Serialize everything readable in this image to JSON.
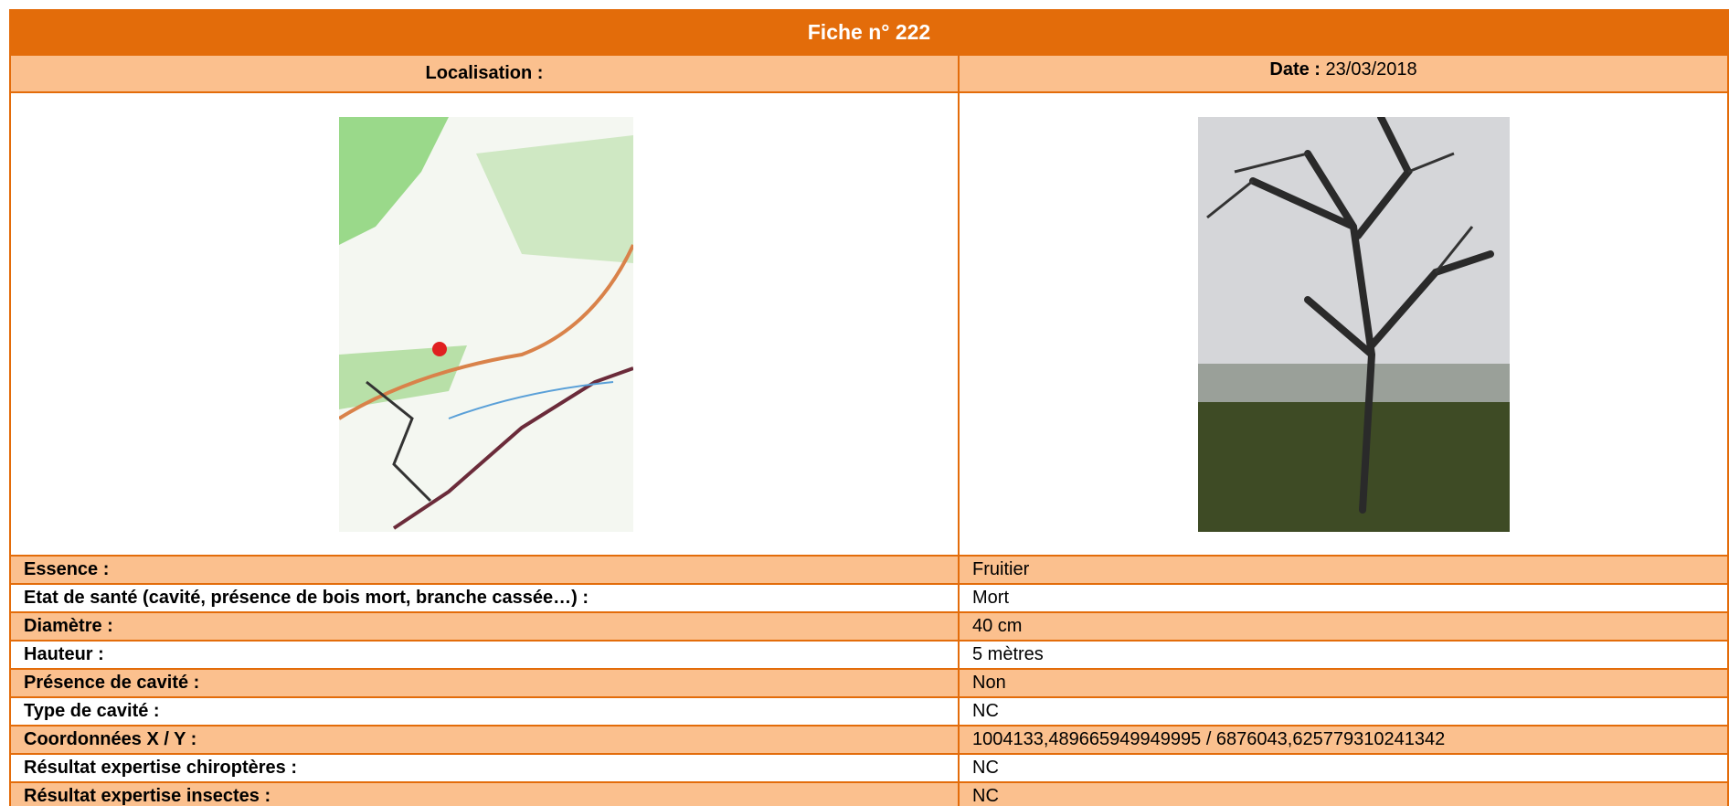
{
  "header": {
    "title": "Fiche n° 222"
  },
  "subheader": {
    "localisation_label": "Localisation :",
    "date_label": "Date :",
    "date_value": "23/03/2018"
  },
  "table": {
    "rows": [
      [
        "Essence :",
        "Fruitier"
      ],
      [
        "Etat de santé (cavité, présence de bois mort, branche cassée…) :",
        "Mort"
      ],
      [
        "Diamètre :",
        "40 cm"
      ],
      [
        "Hauteur :",
        "5 mètres"
      ],
      [
        "Présence de cavité :",
        "Non"
      ],
      [
        "Type de cavité :",
        "NC"
      ],
      [
        "Coordonnées X / Y :",
        "1004133,489665949949995 / 6876043,625779310241342"
      ],
      [
        "Résultat expertise chiroptères :",
        "NC"
      ],
      [
        "Résultat expertise insectes :",
        "NC"
      ]
    ]
  }
}
